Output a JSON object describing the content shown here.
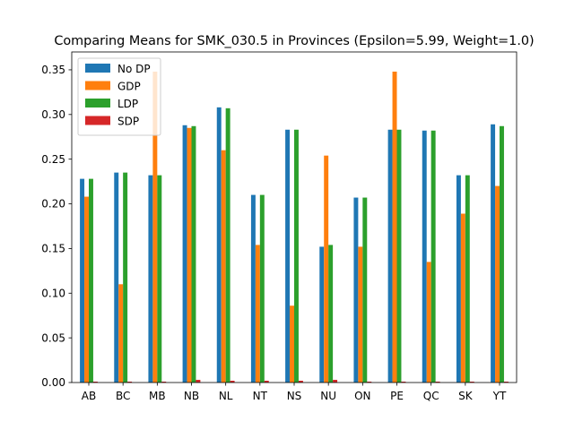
{
  "chart_data": {
    "type": "bar",
    "title": "Comparing Means for SMK_030.5 in Provinces (Epsilon=5.99, Weight=1.0)",
    "xlabel": "",
    "ylabel": "",
    "ylim": [
      0,
      0.37
    ],
    "yticks": [
      "0.00",
      "0.05",
      "0.10",
      "0.15",
      "0.20",
      "0.25",
      "0.30",
      "0.35"
    ],
    "ytick_values": [
      0,
      0.05,
      0.1,
      0.15,
      0.2,
      0.25,
      0.3,
      0.35
    ],
    "categories": [
      "AB",
      "BC",
      "MB",
      "NB",
      "NL",
      "NT",
      "NS",
      "NU",
      "ON",
      "PE",
      "QC",
      "SK",
      "YT"
    ],
    "legend_position": "top-left",
    "grid": false,
    "series": [
      {
        "name": "No DP",
        "color": "#1f77b4",
        "values": [
          0.228,
          0.235,
          0.232,
          0.288,
          0.308,
          0.21,
          0.283,
          0.152,
          0.207,
          0.283,
          0.282,
          0.232,
          0.289
        ]
      },
      {
        "name": "GDP",
        "color": "#ff7f0e",
        "values": [
          0.208,
          0.11,
          0.348,
          0.285,
          0.26,
          0.154,
          0.086,
          0.254,
          0.152,
          0.348,
          0.135,
          0.189,
          0.22
        ]
      },
      {
        "name": "LDP",
        "color": "#2ca02c",
        "values": [
          0.228,
          0.235,
          0.232,
          0.287,
          0.307,
          0.21,
          0.283,
          0.154,
          0.207,
          0.283,
          0.282,
          0.232,
          0.287
        ]
      },
      {
        "name": "SDP",
        "color": "#d62728",
        "values": [
          0.001,
          0.001,
          0.001,
          0.003,
          0.002,
          0.002,
          0.002,
          0.003,
          0.001,
          0.001,
          0.001,
          0.001,
          0.001
        ]
      }
    ]
  }
}
